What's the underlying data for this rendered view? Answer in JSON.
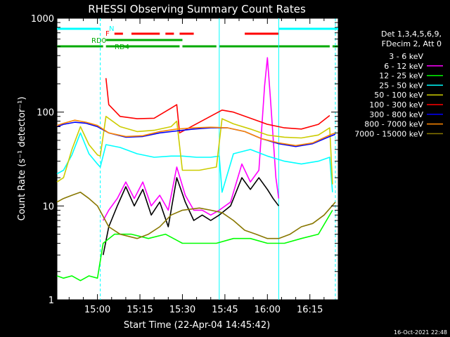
{
  "chart_data": {
    "type": "line",
    "title": "RHESSI Observing Summary Count Rates",
    "xlabel": "Start Time (22-Apr-04 14:45:42)",
    "ylabel": "Count Rate (s⁻¹ detector⁻¹)",
    "yscale": "log",
    "ylim": [
      1,
      1000
    ],
    "xlim": [
      "14:45:42",
      "16:25:00"
    ],
    "y_ticks": [
      "1",
      "10",
      "100",
      "1000"
    ],
    "x_ticks": [
      "15:00",
      "15:15",
      "15:30",
      "15:45",
      "16:00",
      "16:15"
    ],
    "grid": false,
    "legend_position": "right",
    "legend_header": [
      "Det 1,3,4,5,6,9,",
      "FDecim 2, Att 0"
    ],
    "footer_date": "16-Oct-2021 22:48",
    "flags": [
      {
        "label": "N",
        "color": "#00ffff",
        "intervals": [
          [
            "14:45:42",
            "15:01:00"
          ],
          [
            "16:04:00",
            "16:25:00"
          ]
        ]
      },
      {
        "label": "F",
        "color": "#ff0000",
        "intervals": [
          [
            "15:06:00",
            "15:09:00"
          ],
          [
            "15:12:00",
            "15:22:00"
          ],
          [
            "15:24:00",
            "15:27:00"
          ],
          [
            "15:29:00",
            "15:34:00"
          ],
          [
            "15:52:00",
            "16:04:00"
          ]
        ]
      },
      {
        "label": "RD0",
        "color": "#00aa00",
        "intervals": [
          [
            "15:03:00",
            "15:30:00"
          ]
        ]
      },
      {
        "label": "RD4",
        "color": "#00aa00",
        "intervals": [
          [
            "14:45:42",
            "15:02:00"
          ],
          [
            "15:03:00",
            "15:29:00"
          ],
          [
            "15:30:00",
            "15:42:00"
          ],
          [
            "15:43:00",
            "16:22:00"
          ],
          [
            "16:23:00",
            "16:25:00"
          ]
        ]
      }
    ],
    "vlines": [
      {
        "time": "15:01:00",
        "color": "#00ffff",
        "style": "dashed"
      },
      {
        "time": "15:43:00",
        "color": "#00ffff",
        "style": "solid"
      },
      {
        "time": "16:04:00",
        "color": "#00ffff",
        "style": "solid"
      },
      {
        "time": "16:24:00",
        "color": "#00ffff",
        "style": "dashed"
      }
    ],
    "series": [
      {
        "name": "3 - 6 keV",
        "color": "#000000",
        "x": [
          "15:02",
          "15:04",
          "15:07",
          "15:10",
          "15:13",
          "15:16",
          "15:19",
          "15:22",
          "15:25",
          "15:28",
          "15:31",
          "15:34",
          "15:37",
          "15:40",
          "15:43",
          "15:47",
          "15:51",
          "15:54",
          "15:57",
          "16:00",
          "16:02",
          "16:04"
        ],
        "y": [
          3,
          6,
          10,
          16,
          10,
          15,
          8,
          11,
          6,
          20,
          11,
          7,
          8,
          7,
          8,
          10,
          20,
          15,
          20,
          15,
          12,
          10
        ]
      },
      {
        "name": "6 - 12 keV",
        "color": "#ff00ff",
        "x": [
          "15:02",
          "15:04",
          "15:07",
          "15:10",
          "15:13",
          "15:16",
          "15:19",
          "15:22",
          "15:25",
          "15:28",
          "15:31",
          "15:34",
          "15:37",
          "15:40",
          "15:43",
          "15:47",
          "15:51",
          "15:54",
          "15:57",
          "15:59",
          "16:00",
          "16:01",
          "16:03",
          "16:04"
        ],
        "y": [
          7,
          9,
          12,
          18,
          12,
          18,
          10,
          13,
          9,
          26,
          13,
          9,
          9,
          8,
          9,
          11,
          28,
          18,
          24,
          190,
          380,
          150,
          20,
          12
        ]
      },
      {
        "name": "12 - 25 keV",
        "color": "#00ff00",
        "x": [
          "14:45:42",
          "14:48",
          "14:51",
          "14:54",
          "14:57",
          "15:00",
          "15:02",
          "15:06",
          "15:12",
          "15:18",
          "15:24",
          "15:30",
          "15:36",
          "15:42",
          "15:48",
          "15:54",
          "16:00",
          "16:06",
          "16:12",
          "16:18",
          "16:23"
        ],
        "y": [
          1.8,
          1.7,
          1.8,
          1.6,
          1.8,
          1.7,
          4,
          5,
          5,
          4.5,
          5,
          4,
          4,
          4,
          4.5,
          4.5,
          4,
          4,
          4.5,
          5,
          9
        ]
      },
      {
        "name": "25 - 50 keV",
        "color": "#00ffff",
        "x": [
          "14:45:42",
          "14:48",
          "14:51",
          "14:54",
          "14:57",
          "15:00",
          "15:01",
          "15:03",
          "15:08",
          "15:14",
          "15:20",
          "15:26",
          "15:30",
          "15:35",
          "15:40",
          "15:43",
          "15:44",
          "15:48",
          "15:54",
          "16:00",
          "16:06",
          "16:12",
          "16:18",
          "16:22",
          "16:23"
        ],
        "y": [
          22,
          24,
          35,
          60,
          36,
          28,
          26,
          45,
          42,
          36,
          33,
          34,
          34,
          33,
          33,
          34,
          14,
          36,
          40,
          34,
          30,
          28,
          30,
          33,
          14
        ]
      },
      {
        "name": "50 - 100 keV",
        "color": "#cccc00",
        "x": [
          "14:45:42",
          "14:48",
          "14:51",
          "14:54",
          "14:57",
          "15:00",
          "15:01",
          "15:03",
          "15:08",
          "15:14",
          "15:20",
          "15:26",
          "15:28",
          "15:30",
          "15:36",
          "15:42",
          "15:44",
          "15:48",
          "15:54",
          "16:00",
          "16:06",
          "16:12",
          "16:18",
          "16:22",
          "16:23"
        ],
        "y": [
          18,
          20,
          40,
          70,
          45,
          35,
          34,
          90,
          70,
          62,
          64,
          70,
          80,
          24,
          24,
          26,
          85,
          75,
          66,
          57,
          54,
          53,
          57,
          68,
          17
        ]
      },
      {
        "name": "100 - 300 keV",
        "color": "#ff0000",
        "x": [
          "15:03",
          "15:04",
          "15:08",
          "15:14",
          "15:20",
          "15:26",
          "15:28",
          "15:29",
          "15:44",
          "15:48",
          "15:54",
          "15:58",
          "16:00",
          "16:06",
          "16:12",
          "16:18",
          "16:22"
        ],
        "y": [
          230,
          120,
          90,
          85,
          86,
          110,
          120,
          60,
          105,
          100,
          86,
          78,
          74,
          68,
          66,
          74,
          92
        ]
      },
      {
        "name": "300 - 800 keV",
        "color": "#0000ff",
        "x": [
          "14:45:42",
          "14:48",
          "14:52",
          "14:56",
          "15:00",
          "15:04",
          "15:10",
          "15:16",
          "15:22",
          "15:28",
          "15:34",
          "15:40",
          "15:46",
          "15:52",
          "15:58",
          "16:04",
          "16:10",
          "16:16",
          "16:22",
          "16:24"
        ],
        "y": [
          70,
          74,
          78,
          76,
          70,
          60,
          54,
          55,
          60,
          63,
          66,
          68,
          68,
          62,
          52,
          46,
          43,
          46,
          55,
          58
        ]
      },
      {
        "name": "800 - 7000 keV",
        "color": "#ff8800",
        "x": [
          "14:45:42",
          "14:48",
          "14:52",
          "14:56",
          "15:00",
          "15:04",
          "15:10",
          "15:16",
          "15:22",
          "15:28",
          "15:34",
          "15:40",
          "15:46",
          "15:52",
          "15:58",
          "16:04",
          "16:10",
          "16:16",
          "16:22",
          "16:24"
        ],
        "y": [
          72,
          76,
          82,
          78,
          72,
          60,
          55,
          56,
          62,
          66,
          68,
          69,
          68,
          62,
          52,
          47,
          44,
          47,
          57,
          60
        ]
      },
      {
        "name": "7000 - 15000 keV",
        "color": "#887700",
        "x": [
          "14:45:42",
          "14:48",
          "14:51",
          "14:54",
          "14:57",
          "15:00",
          "15:04",
          "15:08",
          "15:14",
          "15:18",
          "15:22",
          "15:26",
          "15:30",
          "15:36",
          "15:40",
          "15:44",
          "15:48",
          "15:52",
          "15:56",
          "16:00",
          "16:04",
          "16:08",
          "16:12",
          "16:16",
          "16:20",
          "16:24"
        ],
        "y": [
          11,
          12,
          13,
          14,
          12,
          10,
          6,
          5,
          4.5,
          5,
          6,
          8,
          9,
          9.5,
          9,
          8.5,
          7,
          5.5,
          5,
          4.5,
          4.5,
          5,
          6,
          6.5,
          8,
          11
        ]
      }
    ]
  }
}
